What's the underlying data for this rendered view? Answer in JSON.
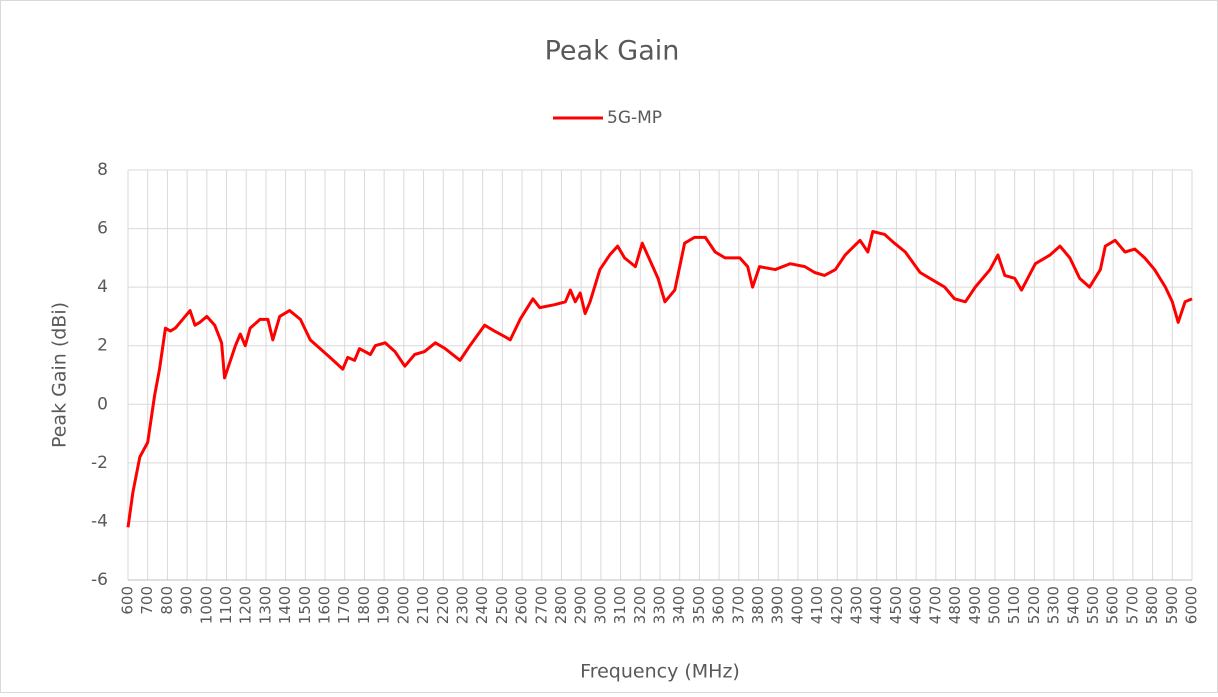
{
  "chart_data": {
    "type": "line",
    "title": "Peak Gain",
    "xlabel": "Frequency (MHz)",
    "ylabel": "Peak Gain (dBi)",
    "x": [
      600,
      625,
      660,
      700,
      735,
      760,
      790,
      815,
      840,
      865,
      915,
      940,
      965,
      1000,
      1040,
      1075,
      1090,
      1120,
      1145,
      1170,
      1195,
      1220,
      1270,
      1310,
      1335,
      1370,
      1420,
      1475,
      1525,
      1575,
      1625,
      1690,
      1715,
      1750,
      1775,
      1830,
      1855,
      1905,
      1955,
      2005,
      2055,
      2105,
      2160,
      2210,
      2285,
      2335,
      2410,
      2460,
      2515,
      2540,
      2590,
      2655,
      2690,
      2765,
      2820,
      2845,
      2870,
      2895,
      2920,
      2945,
      2995,
      3045,
      3085,
      3120,
      3175,
      3210,
      3250,
      3290,
      3325,
      3375,
      3425,
      3475,
      3530,
      3580,
      3630,
      3705,
      3745,
      3770,
      3805,
      3885,
      3960,
      4035,
      4085,
      4135,
      4190,
      4240,
      4315,
      4355,
      4380,
      4440,
      4490,
      4545,
      4620,
      4695,
      4745,
      4795,
      4850,
      4900,
      4975,
      5015,
      5050,
      5100,
      5135,
      5205,
      5280,
      5330,
      5380,
      5430,
      5480,
      5535,
      5560,
      5610,
      5660,
      5710,
      5760,
      5810,
      5865,
      5900,
      5930,
      5965,
      6000
    ],
    "series": [
      {
        "name": "5G-MP",
        "color": "#ff0000",
        "values": [
          -4.2,
          -3.0,
          -1.8,
          -1.3,
          0.3,
          1.2,
          2.6,
          2.5,
          2.6,
          2.8,
          3.2,
          2.7,
          2.8,
          3.0,
          2.7,
          2.1,
          0.9,
          1.5,
          2.0,
          2.4,
          2.0,
          2.6,
          2.9,
          2.9,
          2.2,
          3.0,
          3.2,
          2.9,
          2.2,
          1.9,
          1.6,
          1.2,
          1.6,
          1.5,
          1.9,
          1.7,
          2.0,
          2.1,
          1.8,
          1.3,
          1.7,
          1.8,
          2.1,
          1.9,
          1.5,
          2.0,
          2.7,
          2.5,
          2.3,
          2.2,
          2.9,
          3.6,
          3.3,
          3.4,
          3.5,
          3.9,
          3.5,
          3.8,
          3.1,
          3.5,
          4.6,
          5.1,
          5.4,
          5.0,
          4.7,
          5.5,
          4.9,
          4.3,
          3.5,
          3.9,
          5.5,
          5.7,
          5.7,
          5.2,
          5.0,
          5.0,
          4.7,
          4.0,
          4.7,
          4.6,
          4.8,
          4.7,
          4.5,
          4.4,
          4.6,
          5.1,
          5.6,
          5.2,
          5.9,
          5.8,
          5.5,
          5.2,
          4.5,
          4.2,
          4.0,
          3.6,
          3.5,
          4.0,
          4.6,
          5.1,
          4.4,
          4.3,
          3.9,
          4.8,
          5.1,
          5.4,
          5.0,
          4.3,
          4.0,
          4.6,
          5.4,
          5.6,
          5.2,
          5.3,
          5.0,
          4.6,
          4.0,
          3.5,
          2.8,
          3.5,
          3.6
        ]
      }
    ],
    "xlim": [
      600,
      6000
    ],
    "xticks": [
      600,
      700,
      800,
      900,
      1000,
      1100,
      1200,
      1300,
      1400,
      1500,
      1600,
      1700,
      1800,
      1900,
      2000,
      2100,
      2200,
      2300,
      2400,
      2500,
      2600,
      2700,
      2800,
      2900,
      3000,
      3100,
      3200,
      3300,
      3400,
      3500,
      3600,
      3700,
      3800,
      3900,
      4000,
      4100,
      4200,
      4300,
      4400,
      4500,
      4600,
      4700,
      4800,
      4900,
      5000,
      5100,
      5200,
      5300,
      5400,
      5500,
      5600,
      5700,
      5800,
      5900,
      6000
    ],
    "ylim": [
      -6,
      8
    ],
    "yticks": [
      {
        "value": -6,
        "label": "-6"
      },
      {
        "value": -4,
        "label": "-4"
      },
      {
        "value": -2,
        "label": "-2"
      },
      0,
      2,
      4,
      6,
      8
    ],
    "grid": true,
    "legend": "top"
  }
}
